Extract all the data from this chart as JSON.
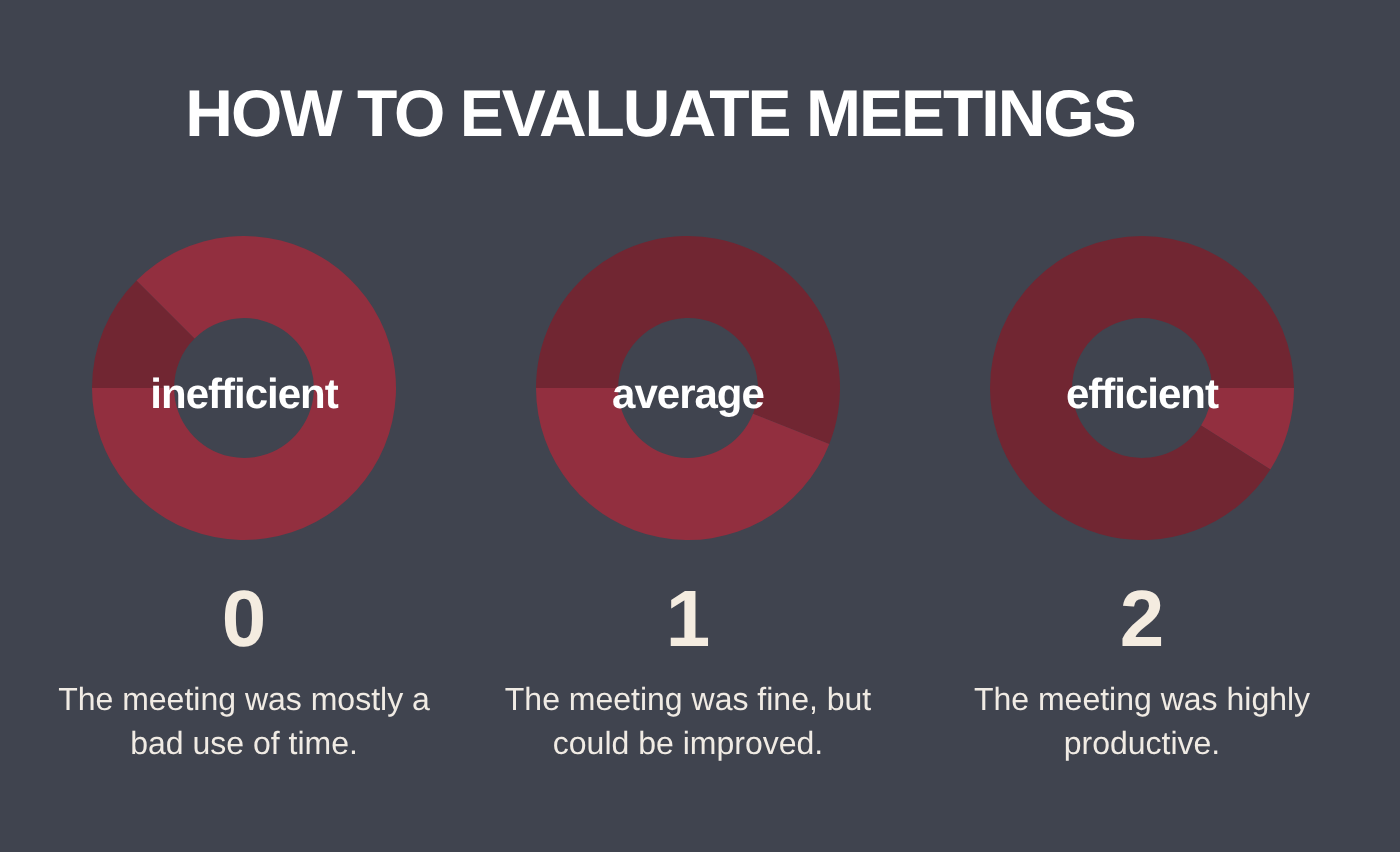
{
  "chart_data": [
    {
      "type": "other",
      "title": "HOW TO EVALUATE MEETINGS"
    },
    {
      "type": "donut",
      "categories": [
        null,
        null
      ],
      "values": [
        12.5,
        87.5
      ],
      "colors": [
        "#712632",
        "#922f3f"
      ],
      "legend": false,
      "annotations": [
        "inefficient",
        "0",
        "The meeting was mostly a bad use of time."
      ]
    },
    {
      "type": "donut",
      "categories": [
        null,
        null
      ],
      "values": [
        56,
        44
      ],
      "colors": [
        "#712632",
        "#922f3f"
      ],
      "legend": false,
      "annotations": [
        "average",
        "1",
        "The meeting was fine, but could be improved."
      ]
    },
    {
      "type": "donut",
      "categories": [
        null,
        null,
        null
      ],
      "values": [
        50,
        9,
        41
      ],
      "colors": [
        "#712632",
        "#922f3f",
        "#712632"
      ],
      "legend": false,
      "annotations": [
        "efficient",
        "2",
        "The meeting was highly productive."
      ]
    }
  ]
}
